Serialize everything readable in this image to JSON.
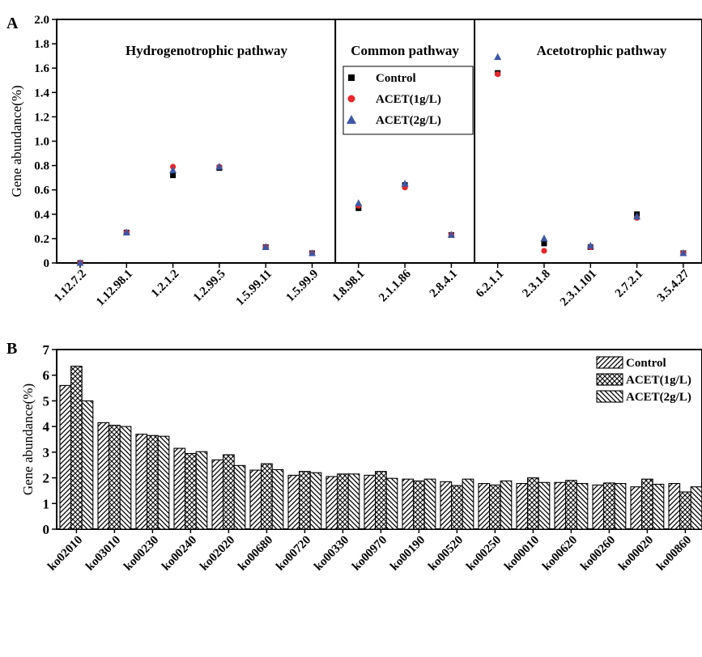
{
  "panel_a_label": "A",
  "panel_b_label": "B",
  "chart_data": [
    {
      "type": "scatter",
      "panel": "A",
      "ylabel": "Gene abundance(%)",
      "xlabel": "",
      "ylim": [
        0,
        2.0
      ],
      "yticks": [
        "0",
        "0.2",
        "0.4",
        "0.6",
        "0.8",
        "1.0",
        "1.2",
        "1.4",
        "1.6",
        "1.8",
        "2.0"
      ],
      "categories": [
        "1.12.7.2",
        "1.12.98.1",
        "1.2.1.2",
        "1.2.99.5",
        "1.5.99.11",
        "1.5.99.9",
        "1.8.98.1",
        "2.1.1.86",
        "2.8.4.1",
        "6.2.1.1",
        "2.3.1.8",
        "2.3.1.101",
        "2.7.2.1",
        "3.5.4.27"
      ],
      "groups": [
        {
          "label": "Hydrogenotrophic pathway",
          "count": 6
        },
        {
          "label": "Common pathway",
          "count": 3
        },
        {
          "label": "Acetotrophic pathway",
          "count": 5
        }
      ],
      "legend_position": "top-center",
      "series": [
        {
          "name": "Control",
          "color": "#000000",
          "marker": "square",
          "values": [
            0.0,
            0.25,
            0.72,
            0.78,
            0.13,
            0.08,
            0.45,
            0.64,
            0.23,
            1.56,
            0.16,
            0.13,
            0.4,
            0.08
          ]
        },
        {
          "name": "ACET(1g/L)",
          "color": "#e8262b",
          "marker": "circle",
          "values": [
            0.0,
            0.25,
            0.79,
            0.79,
            0.13,
            0.08,
            0.47,
            0.62,
            0.23,
            1.55,
            0.1,
            0.13,
            0.37,
            0.08
          ]
        },
        {
          "name": "ACET(2g/L)",
          "color": "#3d57a6",
          "marker": "triangle",
          "values": [
            0.0,
            0.25,
            0.76,
            0.79,
            0.13,
            0.08,
            0.49,
            0.65,
            0.23,
            1.69,
            0.2,
            0.14,
            0.38,
            0.08
          ]
        }
      ]
    },
    {
      "type": "bar",
      "panel": "B",
      "ylabel": "Gene abundance(%)",
      "xlabel": "",
      "ylim": [
        0,
        7
      ],
      "yticks": [
        "0",
        "1",
        "2",
        "3",
        "4",
        "5",
        "6",
        "7"
      ],
      "categories": [
        "ko02010",
        "ko03010",
        "ko00230",
        "ko00240",
        "ko02020",
        "ko00680",
        "ko00720",
        "ko00330",
        "ko00970",
        "ko00190",
        "ko00520",
        "ko00250",
        "ko00010",
        "ko00620",
        "ko00260",
        "ko00020",
        "ko00860"
      ],
      "legend_position": "top-right",
      "series": [
        {
          "name": "Control",
          "pattern": "diagonal",
          "values": [
            5.6,
            4.15,
            3.7,
            3.15,
            2.7,
            2.3,
            2.1,
            2.05,
            2.1,
            1.95,
            1.85,
            1.78,
            1.78,
            1.82,
            1.72,
            1.65,
            1.78
          ]
        },
        {
          "name": "ACET(1g/L)",
          "pattern": "crosshatch",
          "values": [
            6.35,
            4.05,
            3.65,
            2.95,
            2.9,
            2.55,
            2.25,
            2.15,
            2.25,
            1.88,
            1.7,
            1.72,
            2.0,
            1.9,
            1.8,
            1.95,
            1.45
          ]
        },
        {
          "name": "ACET(2g/L)",
          "pattern": "backdiagonal",
          "values": [
            5.0,
            4.0,
            3.62,
            3.02,
            2.48,
            2.32,
            2.2,
            2.15,
            1.98,
            1.95,
            1.95,
            1.88,
            1.82,
            1.78,
            1.78,
            1.75,
            1.65
          ]
        }
      ]
    }
  ]
}
